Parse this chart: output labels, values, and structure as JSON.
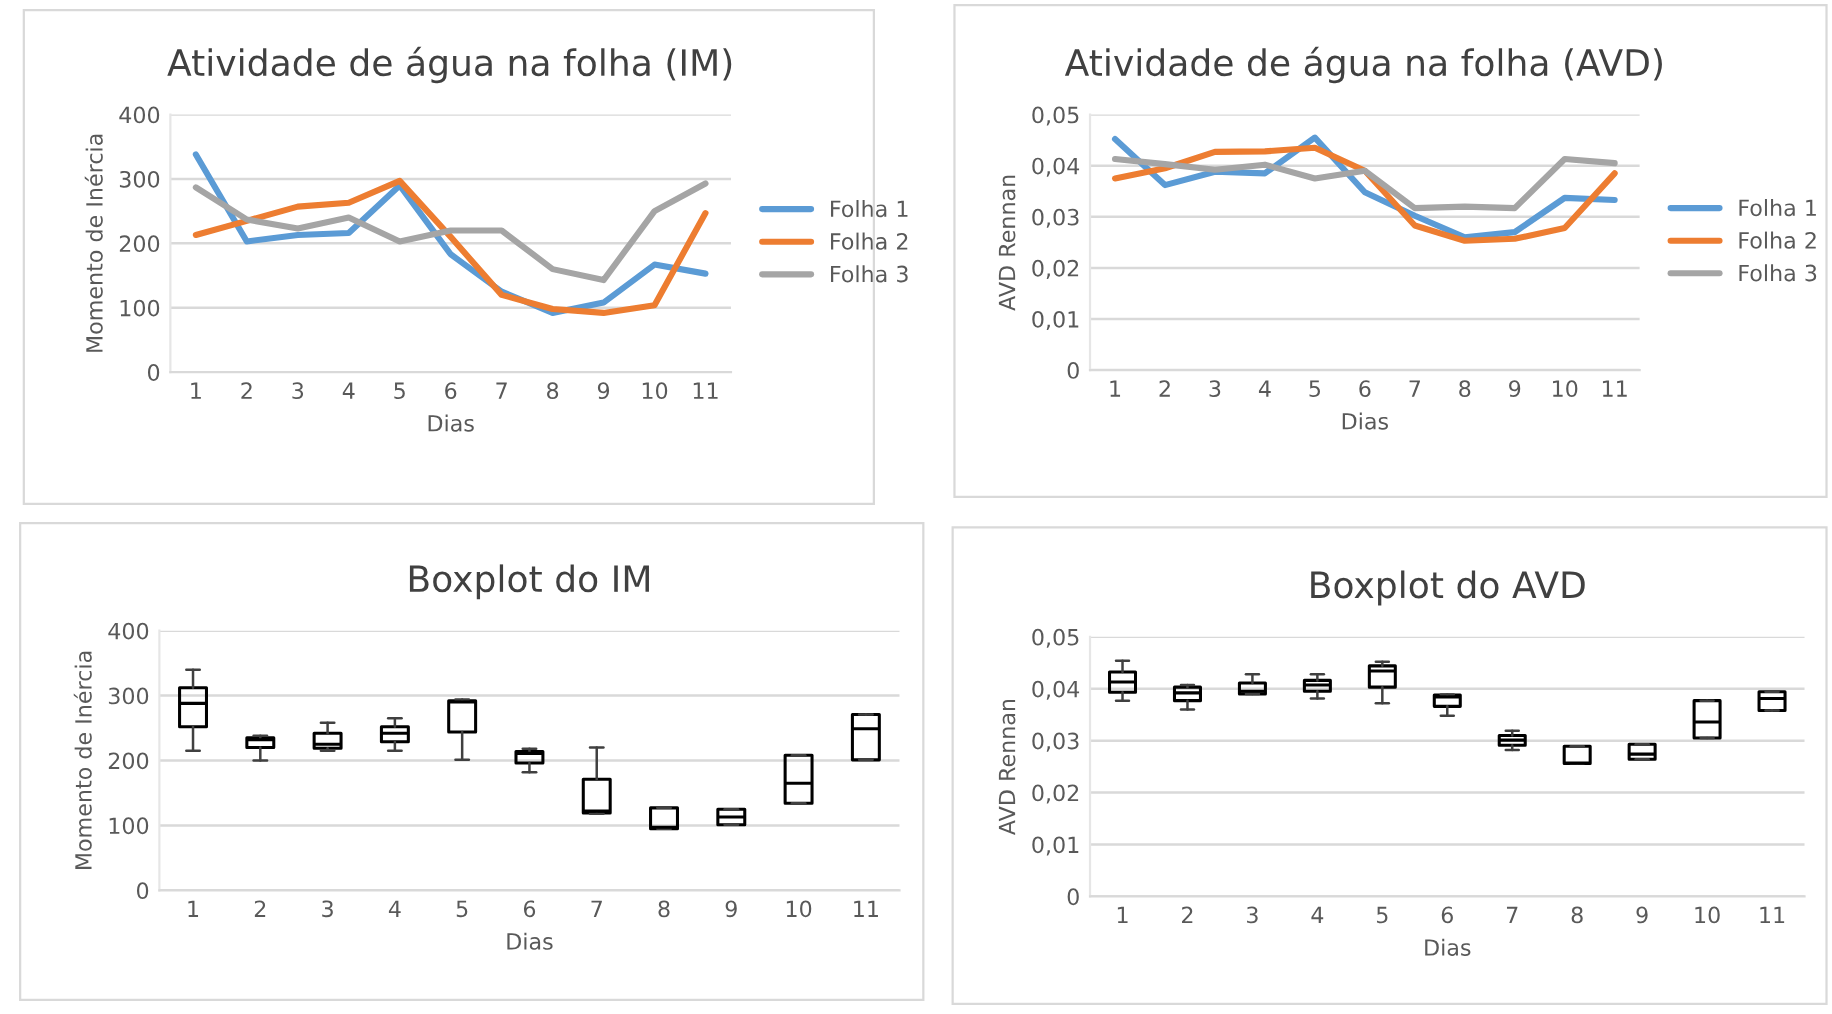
{
  "chart_data": [
    {
      "type": "line",
      "title": "Atividade de água na folha (IM)",
      "xlabel": "Dias",
      "ylabel": "Momento de Inércia",
      "categories": [
        "1",
        "2",
        "3",
        "4",
        "5",
        "6",
        "7",
        "8",
        "9",
        "10",
        "11"
      ],
      "ylim": [
        0,
        400
      ],
      "yticks": [
        0,
        100,
        200,
        300,
        400
      ],
      "grid": "y",
      "legend": "right",
      "series": [
        {
          "name": "Folha 1",
          "color": "#5b9bd5",
          "values": [
            338,
            203,
            213,
            216,
            290,
            183,
            125,
            92,
            108,
            167,
            153
          ]
        },
        {
          "name": "Folha 2",
          "color": "#ed7d31",
          "values": [
            213,
            235,
            257,
            263,
            297,
            210,
            120,
            98,
            92,
            104,
            247
          ]
        },
        {
          "name": "Folha 3",
          "color": "#a5a5a5",
          "values": [
            287,
            237,
            223,
            240,
            203,
            220,
            220,
            160,
            143,
            250,
            293
          ]
        }
      ]
    },
    {
      "type": "line",
      "title": "Atividade de água na folha (AVD)",
      "xlabel": "Dias",
      "ylabel": "AVD Rennan",
      "categories": [
        "1",
        "2",
        "3",
        "4",
        "5",
        "6",
        "7",
        "8",
        "9",
        "10",
        "11"
      ],
      "ylim": [
        0,
        0.05
      ],
      "yticks": [
        0,
        {
          "value": 0.01,
          "label": "0,01"
        },
        {
          "value": 0.02,
          "label": "0,02"
        },
        {
          "value": 0.03,
          "label": "0,03"
        },
        {
          "value": 0.04,
          "label": "0,04"
        },
        {
          "value": 0.05,
          "label": "0,05"
        }
      ],
      "grid": "y",
      "legend": "right",
      "series": [
        {
          "name": "Folha 1",
          "color": "#5b9bd5",
          "values": [
            0.0452,
            0.0362,
            0.0388,
            0.0385,
            0.0455,
            0.0348,
            0.0302,
            0.026,
            0.027,
            0.0337,
            0.0333
          ]
        },
        {
          "name": "Folha 2",
          "color": "#ed7d31",
          "values": [
            0.0375,
            0.0395,
            0.0427,
            0.0428,
            0.0435,
            0.039,
            0.0283,
            0.0253,
            0.0257,
            0.0278,
            0.0385
          ]
        },
        {
          "name": "Folha 3",
          "color": "#a5a5a5",
          "values": [
            0.0413,
            0.0403,
            0.0392,
            0.0402,
            0.0375,
            0.039,
            0.0317,
            0.032,
            0.0317,
            0.0413,
            0.0405
          ]
        }
      ]
    },
    {
      "type": "box",
      "title": "Boxplot do IM",
      "xlabel": "Dias",
      "ylabel": "Momento de Inércia",
      "categories": [
        "1",
        "2",
        "3",
        "4",
        "5",
        "6",
        "7",
        "8",
        "9",
        "10",
        "11"
      ],
      "ylim": [
        0,
        400
      ],
      "yticks": [
        0,
        100,
        200,
        300,
        400
      ],
      "grid": "y",
      "boxes": [
        {
          "low": 215,
          "q1": 252,
          "median": 288,
          "q3": 312,
          "high": 340
        },
        {
          "low": 200,
          "q1": 220,
          "median": 232,
          "q3": 235,
          "high": 238
        },
        {
          "low": 215,
          "q1": 219,
          "median": 225,
          "q3": 242,
          "high": 258
        },
        {
          "low": 215,
          "q1": 229,
          "median": 242,
          "q3": 252,
          "high": 265
        },
        {
          "low": 201,
          "q1": 244,
          "median": 290,
          "q3": 292,
          "high": 294
        },
        {
          "low": 182,
          "q1": 196,
          "median": 211,
          "q3": 214,
          "high": 218
        },
        {
          "low": 118,
          "q1": 119,
          "median": 122,
          "q3": 171,
          "high": 220
        },
        {
          "low": 95,
          "q1": 95,
          "median": 97,
          "q3": 127,
          "high": 127
        },
        {
          "low": 101,
          "q1": 101,
          "median": 113,
          "q3": 125,
          "high": 125
        },
        {
          "low": 134,
          "q1": 134,
          "median": 165,
          "q3": 208,
          "high": 208
        },
        {
          "low": 201,
          "q1": 201,
          "median": 249,
          "q3": 271,
          "high": 271
        }
      ]
    },
    {
      "type": "box",
      "title": "Boxplot do AVD",
      "xlabel": "Dias",
      "ylabel": "AVD Rennan",
      "categories": [
        "1",
        "2",
        "3",
        "4",
        "5",
        "6",
        "7",
        "8",
        "9",
        "10",
        "11"
      ],
      "ylim": [
        0,
        0.05
      ],
      "yticks": [
        0,
        {
          "value": 0.01,
          "label": "0,01"
        },
        {
          "value": 0.02,
          "label": "0,02"
        },
        {
          "value": 0.03,
          "label": "0,03"
        },
        {
          "value": 0.04,
          "label": "0,04"
        },
        {
          "value": 0.05,
          "label": "0,05"
        }
      ],
      "grid": "y",
      "boxes": [
        {
          "low": 0.0377,
          "q1": 0.0393,
          "median": 0.0413,
          "q3": 0.0432,
          "high": 0.0454
        },
        {
          "low": 0.036,
          "q1": 0.0377,
          "median": 0.0392,
          "q3": 0.0403,
          "high": 0.0407
        },
        {
          "low": 0.039,
          "q1": 0.039,
          "median": 0.0395,
          "q3": 0.0411,
          "high": 0.0428
        },
        {
          "low": 0.0381,
          "q1": 0.0395,
          "median": 0.0407,
          "q3": 0.0416,
          "high": 0.0428
        },
        {
          "low": 0.0372,
          "q1": 0.0403,
          "median": 0.0434,
          "q3": 0.0444,
          "high": 0.0452
        },
        {
          "low": 0.0348,
          "q1": 0.0366,
          "median": 0.0384,
          "q3": 0.0388,
          "high": 0.0389
        },
        {
          "low": 0.0282,
          "q1": 0.0291,
          "median": 0.0301,
          "q3": 0.031,
          "high": 0.0319
        },
        {
          "low": 0.0256,
          "q1": 0.0256,
          "median": 0.0257,
          "q3": 0.0289,
          "high": 0.0289
        },
        {
          "low": 0.0264,
          "q1": 0.0264,
          "median": 0.0274,
          "q3": 0.0293,
          "high": 0.0293
        },
        {
          "low": 0.0305,
          "q1": 0.0305,
          "median": 0.0336,
          "q3": 0.0377,
          "high": 0.0377
        },
        {
          "low": 0.0358,
          "q1": 0.0358,
          "median": 0.0381,
          "q3": 0.0394,
          "high": 0.0394
        }
      ]
    }
  ]
}
